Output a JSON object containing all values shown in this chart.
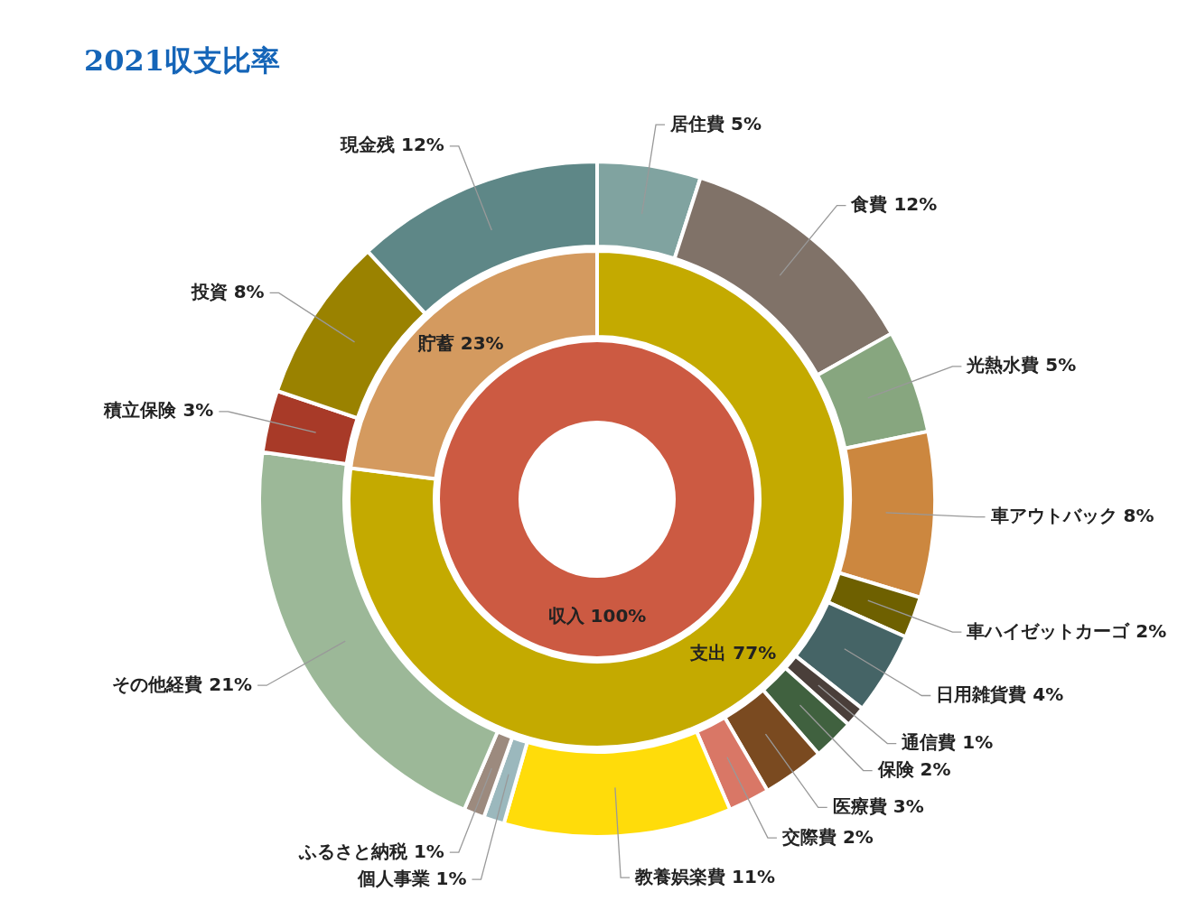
{
  "chart_data": [
    {
      "type": "donut",
      "title": "2021収支比率",
      "categories": [
        "収入"
      ],
      "values": [
        100
      ],
      "value_labels": [
        "100%"
      ],
      "colors": [
        "#cc5a42"
      ]
    },
    {
      "type": "donut",
      "categories": [
        "支出",
        "貯蓄"
      ],
      "values": [
        77,
        23
      ],
      "value_labels": [
        "77%",
        "23%"
      ],
      "colors": [
        "#c4aa00",
        "#d49a5f"
      ]
    },
    {
      "type": "donut",
      "categories": [
        "居住費",
        "食費",
        "光熱水費",
        "車アウトバック",
        "車ハイゼットカーゴ",
        "日用雑貨費",
        "通信費",
        "保険",
        "医療費",
        "交際費",
        "教養娯楽費",
        "個人事業",
        "ふるさと納税",
        "その他経費",
        "積立保険",
        "投資",
        "現金残"
      ],
      "values": [
        5,
        12,
        5,
        8,
        2,
        4,
        1,
        2,
        3,
        2,
        11,
        1,
        1,
        21,
        3,
        8,
        12
      ],
      "value_labels": [
        "5%",
        "12%",
        "5%",
        "8%",
        "2%",
        "4%",
        "1%",
        "2%",
        "3%",
        "2%",
        "11%",
        "1%",
        "1%",
        "21%",
        "3%",
        "8%",
        "12%"
      ],
      "colors": [
        "#80a3a0",
        "#807268",
        "#87a67f",
        "#cc873f",
        "#6e6000",
        "#456466",
        "#4a3f3a",
        "#40613f",
        "#7a4a20",
        "#d97766",
        "#ffdc0a",
        "#9bb8bd",
        "#9c8a7e",
        "#9cb898",
        "#a83a28",
        "#9a8200",
        "#5e8787"
      ]
    }
  ]
}
